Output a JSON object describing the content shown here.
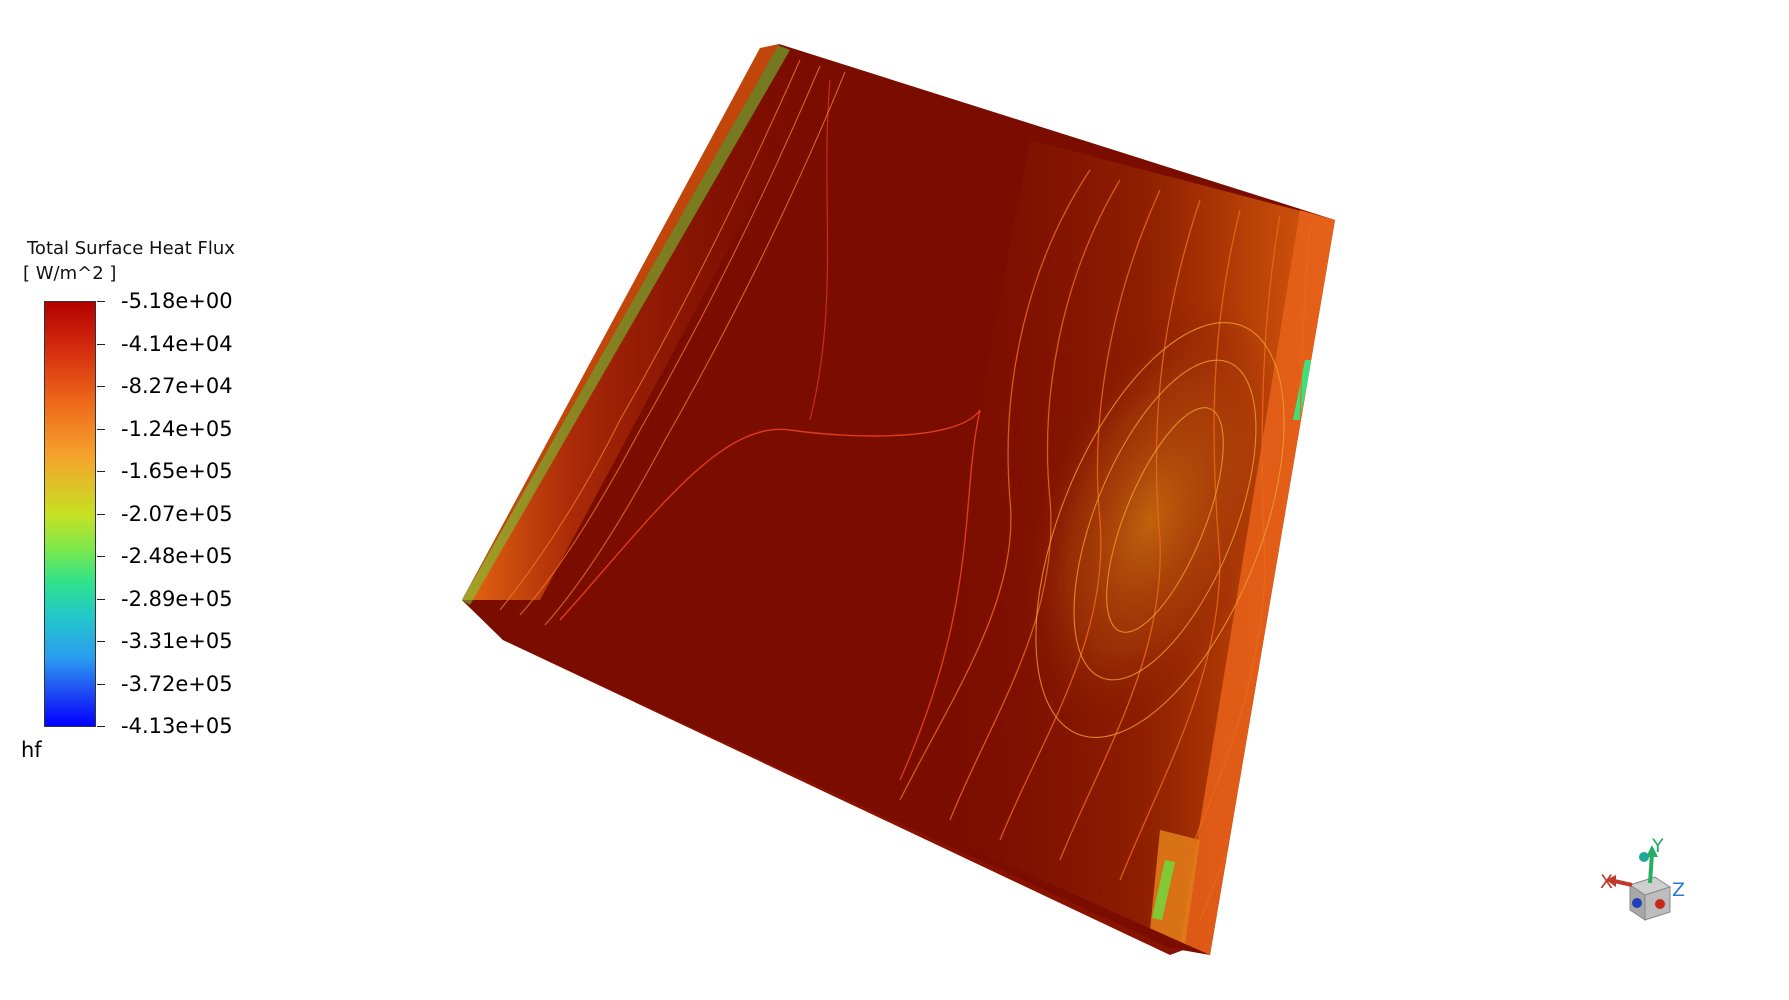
{
  "legend": {
    "title": "Total Surface Heat Flux",
    "units": "[ W/m^2 ]",
    "variable": "hf",
    "ticks": [
      "-5.18e+00",
      "-4.14e+04",
      "-8.27e+04",
      "-1.24e+05",
      "-1.65e+05",
      "-2.07e+05",
      "-2.48e+05",
      "-2.89e+05",
      "-3.31e+05",
      "-3.72e+05",
      "-4.13e+05"
    ],
    "colors": {
      "max": "#b30000",
      "high": "#e84a16",
      "mid_high": "#f39b2b",
      "mid": "#c8e022",
      "mid_low": "#4be86b",
      "low": "#22b7e8",
      "min": "#0000ff"
    }
  },
  "axes": {
    "x_label": "X",
    "y_label": "Y",
    "z_label": "Z",
    "x_color": "#c0392b",
    "y_color": "#27ae60",
    "z_color": "#2c7bd6"
  },
  "icons": [
    "axis-triad-icon"
  ]
}
